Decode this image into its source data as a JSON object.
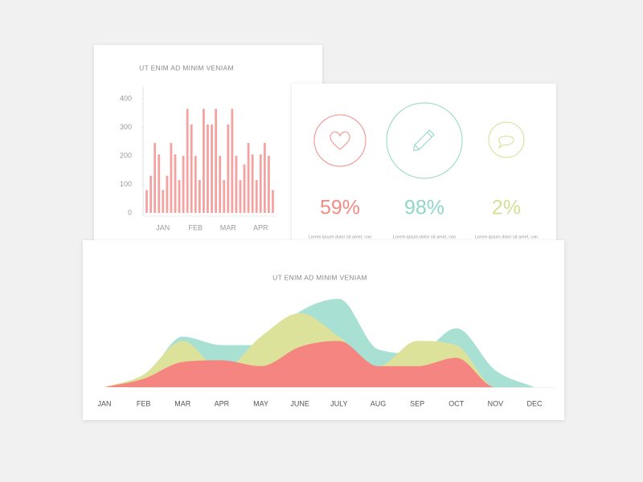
{
  "chart_data": [
    {
      "type": "bar",
      "title": "UT ENIM AD MINIM VENIAM",
      "color": "#f4a3a0",
      "categories": [
        null,
        null,
        null,
        null,
        "JAN",
        null,
        null,
        null,
        null,
        null,
        null,
        null,
        "FEB",
        null,
        null,
        null,
        null,
        null,
        null,
        null,
        "MAR",
        null,
        null,
        null,
        null,
        null,
        null,
        null,
        "APR",
        null,
        null,
        null
      ],
      "values": [
        80,
        130,
        245,
        205,
        80,
        130,
        245,
        205,
        115,
        200,
        365,
        310,
        200,
        115,
        365,
        310,
        310,
        365,
        200,
        115,
        310,
        365,
        200,
        115,
        170,
        245,
        205,
        115,
        205,
        245,
        200,
        80
      ],
      "ylim": [
        0,
        400
      ],
      "yticks": [
        0,
        100,
        200,
        300,
        400
      ]
    },
    {
      "type": "area",
      "title": "UT ENIM AD MINIM VENIAM",
      "categories": [
        "JAN",
        "FEB",
        "MAR",
        "APR",
        "MAY",
        "JUNE",
        "JULY",
        "AUG",
        "SEP",
        "OCT",
        "NOV",
        "DEC"
      ],
      "series": [
        {
          "color": "#a8e0d3",
          "values": [
            0,
            10,
            60,
            50,
            50,
            90,
            105,
            45,
            40,
            70,
            20,
            0
          ]
        },
        {
          "color": "#dde29a",
          "values": [
            0,
            15,
            55,
            20,
            60,
            88,
            60,
            25,
            55,
            50,
            0,
            0
          ]
        },
        {
          "color": "#f58580",
          "values": [
            0,
            10,
            30,
            32,
            25,
            48,
            55,
            25,
            25,
            35,
            0,
            0
          ]
        }
      ]
    }
  ],
  "stats": [
    {
      "value": "59%",
      "caption": "Lorem ipsum dolor sit amet, con",
      "color": "#f28b86"
    },
    {
      "value": "98%",
      "caption": "Lorem ipsum dolor sit amet, con",
      "color": "#8fd6c6"
    },
    {
      "value": "2%",
      "caption": "Lorem ipsum dolor sit amet, con",
      "color": "#d6df93"
    }
  ]
}
